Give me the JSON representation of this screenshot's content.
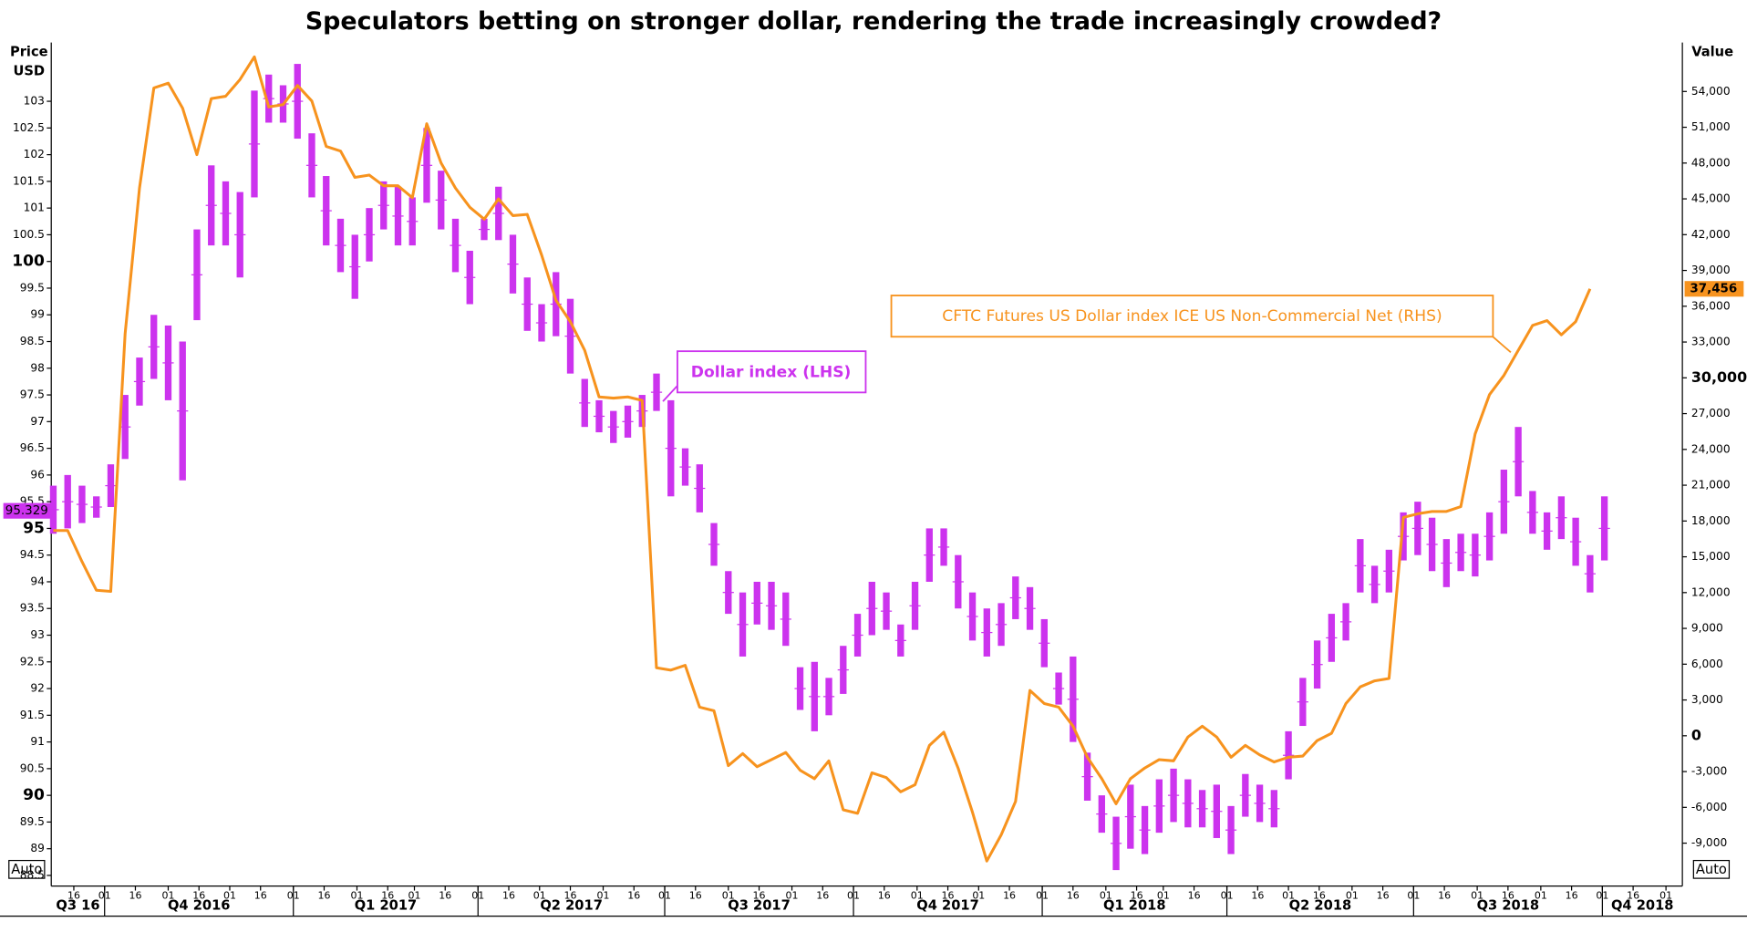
{
  "chart_data": {
    "type": "candlestick",
    "title": "Speculators betting on stronger dollar, rendering the trade increasingly crowded?",
    "ylabel_lines": [
      "Price",
      "USD"
    ],
    "y2label": "Value",
    "left_scale_button": "Auto",
    "right_scale_button": "Auto",
    "last_price": {
      "value": 95.329,
      "label": "95.329"
    },
    "last_net": {
      "value": 37456,
      "label": "37,456"
    },
    "xlim": [
      "2016-09-05",
      "2018-11-09"
    ],
    "ylim": [
      88.3,
      104.1
    ],
    "y2lim": [
      -12600,
      58100
    ],
    "yticks": [
      88.5,
      89,
      89.5,
      90,
      90.5,
      91,
      91.5,
      92,
      92.5,
      93,
      93.5,
      94,
      94.5,
      95,
      95.5,
      96,
      96.5,
      97,
      97.5,
      98,
      98.5,
      99,
      99.5,
      100,
      100.5,
      101,
      101.5,
      102,
      102.5,
      103
    ],
    "y2ticks": [
      {
        "value": -9000,
        "label": "-9,000"
      },
      {
        "value": -6000,
        "label": "-6,000"
      },
      {
        "value": -3000,
        "label": "-3,000"
      },
      0,
      {
        "value": 3000,
        "label": "3,000"
      },
      {
        "value": 6000,
        "label": "6,000"
      },
      {
        "value": 9000,
        "label": "9,000"
      },
      {
        "value": 12000,
        "label": "12,000"
      },
      {
        "value": 15000,
        "label": "15,000"
      },
      {
        "value": 18000,
        "label": "18,000"
      },
      {
        "value": 21000,
        "label": "21,000"
      },
      {
        "value": 24000,
        "label": "24,000"
      },
      {
        "value": 27000,
        "label": "27,000"
      },
      {
        "value": 30000,
        "label": "30,000"
      },
      {
        "value": 33000,
        "label": "33,000"
      },
      {
        "value": 36000,
        "label": "36,000"
      },
      {
        "value": 39000,
        "label": "39,000"
      },
      {
        "value": 42000,
        "label": "42,000"
      },
      {
        "value": 45000,
        "label": "45,000"
      },
      {
        "value": 48000,
        "label": "48,000"
      },
      {
        "value": 51000,
        "label": "51,000"
      },
      {
        "value": 54000,
        "label": "54,000"
      }
    ],
    "xticks": [
      {
        "value": "2016-09-16",
        "label": "16"
      },
      {
        "value": "2016-10-01",
        "label": "01"
      },
      {
        "value": "2016-10-16",
        "label": "16"
      },
      {
        "value": "2016-11-01",
        "label": "01"
      },
      {
        "value": "2016-11-16",
        "label": "16"
      },
      {
        "value": "2016-12-01",
        "label": "01"
      },
      {
        "value": "2016-12-16",
        "label": "16"
      },
      {
        "value": "2017-01-01",
        "label": "01"
      },
      {
        "value": "2017-01-16",
        "label": "16"
      },
      {
        "value": "2017-02-01",
        "label": "01"
      },
      {
        "value": "2017-02-16",
        "label": "16"
      },
      {
        "value": "2017-03-01",
        "label": "01"
      },
      {
        "value": "2017-03-16",
        "label": "16"
      },
      {
        "value": "2017-04-01",
        "label": "01"
      },
      {
        "value": "2017-04-16",
        "label": "16"
      },
      {
        "value": "2017-05-01",
        "label": "01"
      },
      {
        "value": "2017-05-16",
        "label": "16"
      },
      {
        "value": "2017-06-01",
        "label": "01"
      },
      {
        "value": "2017-06-16",
        "label": "16"
      },
      {
        "value": "2017-07-01",
        "label": "01"
      },
      {
        "value": "2017-07-16",
        "label": "16"
      },
      {
        "value": "2017-08-01",
        "label": "01"
      },
      {
        "value": "2017-08-16",
        "label": "16"
      },
      {
        "value": "2017-09-01",
        "label": "01"
      },
      {
        "value": "2017-09-16",
        "label": "16"
      },
      {
        "value": "2017-10-01",
        "label": "01"
      },
      {
        "value": "2017-10-16",
        "label": "16"
      },
      {
        "value": "2017-11-01",
        "label": "01"
      },
      {
        "value": "2017-11-16",
        "label": "16"
      },
      {
        "value": "2017-12-01",
        "label": "01"
      },
      {
        "value": "2017-12-16",
        "label": "16"
      },
      {
        "value": "2018-01-01",
        "label": "01"
      },
      {
        "value": "2018-01-16",
        "label": "16"
      },
      {
        "value": "2018-02-01",
        "label": "01"
      },
      {
        "value": "2018-02-16",
        "label": "16"
      },
      {
        "value": "2018-03-01",
        "label": "01"
      },
      {
        "value": "2018-03-16",
        "label": "16"
      },
      {
        "value": "2018-04-01",
        "label": "01"
      },
      {
        "value": "2018-04-16",
        "label": "16"
      },
      {
        "value": "2018-05-01",
        "label": "01"
      },
      {
        "value": "2018-05-16",
        "label": "16"
      },
      {
        "value": "2018-06-01",
        "label": "01"
      },
      {
        "value": "2018-06-16",
        "label": "16"
      },
      {
        "value": "2018-07-01",
        "label": "01"
      },
      {
        "value": "2018-07-16",
        "label": "16"
      },
      {
        "value": "2018-08-01",
        "label": "01"
      },
      {
        "value": "2018-08-16",
        "label": "16"
      },
      {
        "value": "2018-09-01",
        "label": "01"
      },
      {
        "value": "2018-09-16",
        "label": "16"
      },
      {
        "value": "2018-10-01",
        "label": "01"
      },
      {
        "value": "2018-10-16",
        "label": "16"
      },
      {
        "value": "2018-11-01",
        "label": "01"
      }
    ],
    "xquarters": [
      {
        "value": "2016-07-01",
        "label": "Q3 16"
      },
      {
        "value": "2016-10-01",
        "label": "Q4 2016"
      },
      {
        "value": "2017-01-01",
        "label": "Q1 2017"
      },
      {
        "value": "2017-04-01",
        "label": "Q2 2017"
      },
      {
        "value": "2017-07-01",
        "label": "Q3 2017"
      },
      {
        "value": "2017-10-01",
        "label": "Q4 2017"
      },
      {
        "value": "2018-01-01",
        "label": "Q1 2018"
      },
      {
        "value": "2018-04-01",
        "label": "Q2 2018"
      },
      {
        "value": "2018-07-01",
        "label": "Q3 2018"
      },
      {
        "value": "2018-10-01",
        "label": "Q4 2018"
      }
    ],
    "x": [
      "2016-09-06",
      "2016-09-13",
      "2016-09-20",
      "2016-09-27",
      "2016-10-04",
      "2016-10-11",
      "2016-10-18",
      "2016-10-25",
      "2016-11-01",
      "2016-11-08",
      "2016-11-15",
      "2016-11-22",
      "2016-11-29",
      "2016-12-06",
      "2016-12-13",
      "2016-12-20",
      "2016-12-27",
      "2017-01-03",
      "2017-01-10",
      "2017-01-17",
      "2017-01-24",
      "2017-01-31",
      "2017-02-07",
      "2017-02-14",
      "2017-02-21",
      "2017-02-28",
      "2017-03-07",
      "2017-03-14",
      "2017-03-21",
      "2017-03-28",
      "2017-04-04",
      "2017-04-11",
      "2017-04-18",
      "2017-04-25",
      "2017-05-02",
      "2017-05-09",
      "2017-05-16",
      "2017-05-23",
      "2017-05-30",
      "2017-06-06",
      "2017-06-13",
      "2017-06-20",
      "2017-06-27",
      "2017-07-04",
      "2017-07-11",
      "2017-07-18",
      "2017-07-25",
      "2017-08-01",
      "2017-08-08",
      "2017-08-15",
      "2017-08-22",
      "2017-08-29",
      "2017-09-05",
      "2017-09-12",
      "2017-09-19",
      "2017-09-26",
      "2017-10-03",
      "2017-10-10",
      "2017-10-17",
      "2017-10-24",
      "2017-10-31",
      "2017-11-07",
      "2017-11-14",
      "2017-11-21",
      "2017-11-28",
      "2017-12-05",
      "2017-12-12",
      "2017-12-19",
      "2017-12-26",
      "2018-01-02",
      "2018-01-09",
      "2018-01-16",
      "2018-01-23",
      "2018-01-30",
      "2018-02-06",
      "2018-02-13",
      "2018-02-20",
      "2018-02-27",
      "2018-03-06",
      "2018-03-13",
      "2018-03-20",
      "2018-03-27",
      "2018-04-03",
      "2018-04-10",
      "2018-04-17",
      "2018-04-24",
      "2018-05-01",
      "2018-05-08",
      "2018-05-15",
      "2018-05-22",
      "2018-05-29",
      "2018-06-05",
      "2018-06-12",
      "2018-06-19",
      "2018-06-26",
      "2018-07-03",
      "2018-07-10",
      "2018-07-17",
      "2018-07-24",
      "2018-07-31",
      "2018-08-07",
      "2018-08-14",
      "2018-08-21",
      "2018-08-28",
      "2018-09-04",
      "2018-09-11",
      "2018-09-18",
      "2018-09-25",
      "2018-10-02"
    ],
    "series": [
      {
        "name": "Dollar index (LHS)",
        "type": "candlestick",
        "color": "#cc33ee",
        "high": [
          95.8,
          96.0,
          95.8,
          95.6,
          96.2,
          97.5,
          98.2,
          99.0,
          98.8,
          98.5,
          100.6,
          101.8,
          101.5,
          101.3,
          103.2,
          103.5,
          103.3,
          103.7,
          102.4,
          101.6,
          100.8,
          100.5,
          101.0,
          101.5,
          101.4,
          101.2,
          102.5,
          101.7,
          100.8,
          100.2,
          100.8,
          101.4,
          100.5,
          99.7,
          99.2,
          99.8,
          99.3,
          97.8,
          97.4,
          97.2,
          97.3,
          97.5,
          97.9,
          97.4,
          96.5,
          96.2,
          95.1,
          94.2,
          93.8,
          94.0,
          94.0,
          93.8,
          92.4,
          92.5,
          92.2,
          92.8,
          93.4,
          94.0,
          93.8,
          93.2,
          94.0,
          95.0,
          95.0,
          94.5,
          93.8,
          93.5,
          93.6,
          94.1,
          93.9,
          93.3,
          92.3,
          92.6,
          90.8,
          90.0,
          89.6,
          90.2,
          89.8,
          90.3,
          90.5,
          90.3,
          90.1,
          90.2,
          89.8,
          90.4,
          90.2,
          90.1,
          91.2,
          92.2,
          92.9,
          93.4,
          93.6,
          94.8,
          94.3,
          94.6,
          95.3,
          95.5,
          95.2,
          94.8,
          94.9,
          94.9,
          95.3,
          96.1,
          96.9,
          95.7,
          95.3,
          95.6,
          95.2,
          94.5,
          95.6
        ],
        "low": [
          94.9,
          95.0,
          95.1,
          95.2,
          95.4,
          96.3,
          97.3,
          97.8,
          97.4,
          95.9,
          98.9,
          100.3,
          100.3,
          99.7,
          101.2,
          102.6,
          102.6,
          102.3,
          101.2,
          100.3,
          99.8,
          99.3,
          100.0,
          100.6,
          100.3,
          100.3,
          101.1,
          100.6,
          99.8,
          99.2,
          100.4,
          100.4,
          99.4,
          98.7,
          98.5,
          98.6,
          97.9,
          96.9,
          96.8,
          96.6,
          96.7,
          96.9,
          97.2,
          95.6,
          95.8,
          95.3,
          94.3,
          93.4,
          92.6,
          93.2,
          93.1,
          92.8,
          91.6,
          91.2,
          91.5,
          91.9,
          92.6,
          93.0,
          93.1,
          92.6,
          93.1,
          94.0,
          94.3,
          93.5,
          92.9,
          92.6,
          92.8,
          93.3,
          93.1,
          92.4,
          91.7,
          91.0,
          89.9,
          89.3,
          88.6,
          89.0,
          88.9,
          89.3,
          89.5,
          89.4,
          89.4,
          89.2,
          88.9,
          89.6,
          89.5,
          89.4,
          90.3,
          91.3,
          92.0,
          92.5,
          92.9,
          93.8,
          93.6,
          93.8,
          94.4,
          94.5,
          94.2,
          93.9,
          94.2,
          94.1,
          94.4,
          94.9,
          95.6,
          94.9,
          94.6,
          94.8,
          94.3,
          93.8,
          94.4
        ]
      },
      {
        "name": "CFTC Futures US Dollar index ICE US Non-Commercial Net (RHS)",
        "type": "line",
        "color": "#f7931e",
        "axis": "y2",
        "values": [
          17200,
          17200,
          14600,
          12200,
          12100,
          33700,
          45900,
          54300,
          54700,
          52600,
          48700,
          53400,
          53600,
          55000,
          56900,
          52700,
          52900,
          54500,
          53200,
          49400,
          49000,
          46800,
          47000,
          46100,
          46100,
          45100,
          51300,
          48000,
          45900,
          44300,
          43300,
          45000,
          43600,
          43700,
          40300,
          36500,
          34700,
          32300,
          28400,
          28300,
          28400,
          28100,
          5700,
          5500,
          5900,
          2400,
          2100,
          -2500,
          -1500,
          -2600,
          -2000,
          -1400,
          -2900,
          -3600,
          -2100,
          -6200,
          -6500,
          -3100,
          -3500,
          -4700,
          -4100,
          -800,
          300,
          -2700,
          -6400,
          -10500,
          -8300,
          -5500,
          3800,
          2700,
          2400,
          800,
          -1800,
          -3600,
          -5700,
          -3600,
          -2700,
          -2000,
          -2100,
          -100,
          800,
          -100,
          -1800,
          -800,
          -1600,
          -2200,
          -1800,
          -1700,
          -400,
          200,
          2700,
          4100,
          4600,
          4800,
          18300,
          18600,
          18800,
          18800,
          19200,
          25300,
          28600,
          30200,
          32300,
          34400,
          34800,
          33600,
          34700,
          37456,
          null
        ]
      }
    ]
  }
}
